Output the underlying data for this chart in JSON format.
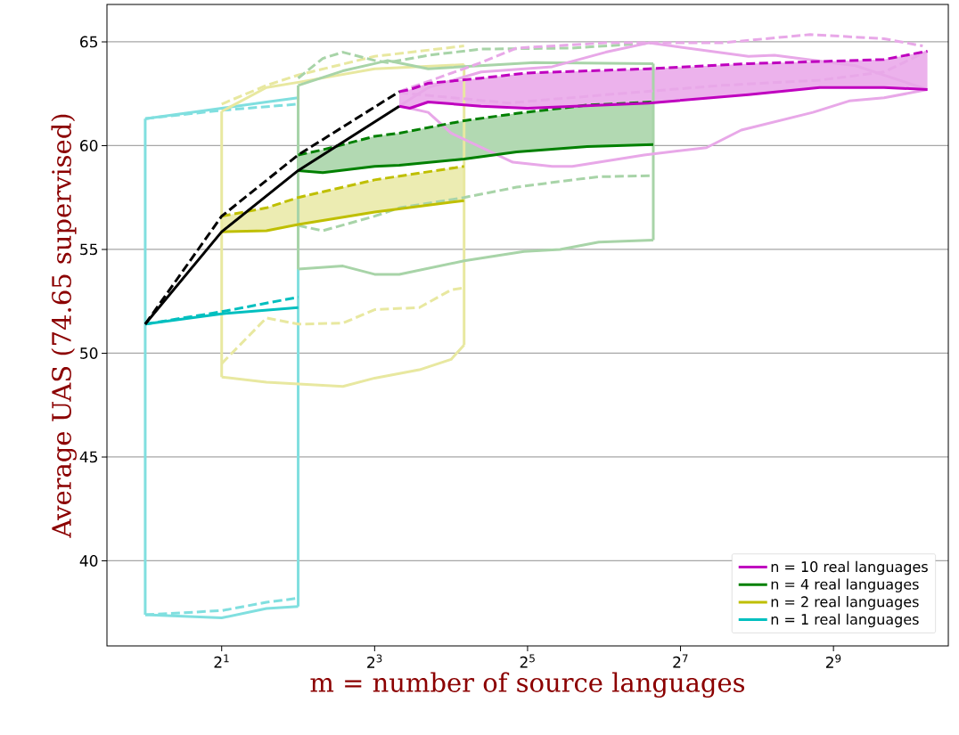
{
  "chart_data": {
    "type": "line",
    "xlabel": "m = number of source languages",
    "ylabel": "Average UAS (74.65 supervised)",
    "log": "x",
    "xlim": [
      0.707,
      1450
    ],
    "ylim": [
      35.9,
      66.8
    ],
    "xticks": [
      {
        "value": 2,
        "label": "2$^{1}$"
      },
      {
        "value": 8,
        "label": "2$^{3}$"
      },
      {
        "value": 32,
        "label": "2$^{5}$"
      },
      {
        "value": 128,
        "label": "2$^{7}$"
      },
      {
        "value": 512,
        "label": "2$^{9}$"
      }
    ],
    "yticks": [
      40,
      45,
      50,
      55,
      60,
      65
    ],
    "grid": "y",
    "legend": "bottom right",
    "series": [
      {
        "color": "#80dfdf",
        "line_style": "solid",
        "x": [
          1,
          2,
          3,
          4
        ],
        "values": [
          61.3,
          61.8,
          62.1,
          62.3
        ]
      },
      {
        "color": "#80dfdf",
        "line_style": "solid",
        "x": [
          1,
          2,
          3,
          4
        ],
        "values": [
          37.4,
          37.25,
          37.7,
          37.8
        ]
      },
      {
        "color": "#80dfdf",
        "line_style": "solid",
        "x": [
          1,
          1
        ],
        "values": [
          37.4,
          61.3
        ]
      },
      {
        "color": "#80dfdf",
        "line_style": "solid",
        "x": [
          4,
          4
        ],
        "values": [
          37.8,
          62.3
        ]
      },
      {
        "color": "#80dfdf",
        "line_style": "dashed",
        "x": [
          1,
          2,
          4
        ],
        "values": [
          61.3,
          61.7,
          62.0
        ]
      },
      {
        "color": "#80dfdf",
        "line_style": "dashed",
        "x": [
          1,
          2,
          3,
          4
        ],
        "values": [
          37.4,
          37.6,
          38.0,
          38.2
        ]
      },
      {
        "color": "#e8e8a0",
        "line_style": "solid",
        "x": [
          2,
          3,
          4,
          8,
          18
        ],
        "values": [
          61.65,
          62.8,
          63.05,
          63.7,
          63.9
        ]
      },
      {
        "color": "#e8e8a0",
        "line_style": "solid",
        "x": [
          2,
          3,
          6,
          8,
          12,
          16,
          18
        ],
        "values": [
          48.85,
          48.6,
          48.4,
          48.8,
          49.2,
          49.7,
          50.4
        ]
      },
      {
        "color": "#e8e8a0",
        "line_style": "solid",
        "x": [
          2,
          2
        ],
        "values": [
          48.85,
          61.65
        ]
      },
      {
        "color": "#e8e8a0",
        "line_style": "solid",
        "x": [
          18,
          18
        ],
        "values": [
          50.4,
          63.9
        ]
      },
      {
        "color": "#e8e8a0",
        "line_style": "dashed",
        "x": [
          2,
          3,
          4,
          8,
          18
        ],
        "values": [
          62.0,
          62.9,
          63.4,
          64.3,
          64.8
        ]
      },
      {
        "color": "#e8e8a0",
        "line_style": "dashed",
        "x": [
          2,
          3,
          4,
          6,
          8,
          12,
          16,
          18
        ],
        "values": [
          49.5,
          51.7,
          51.4,
          51.45,
          52.1,
          52.2,
          53.05,
          53.15
        ]
      },
      {
        "color": "#a8d4a8",
        "line_style": "solid",
        "x": [
          4,
          6,
          8,
          9,
          13,
          34,
          100
        ],
        "values": [
          62.9,
          63.6,
          63.95,
          64.1,
          63.7,
          64.0,
          63.95
        ]
      },
      {
        "color": "#a8d4a8",
        "line_style": "solid",
        "x": [
          4,
          6,
          8,
          10,
          18,
          31,
          43,
          61,
          100
        ],
        "values": [
          54.05,
          54.2,
          53.8,
          53.8,
          54.45,
          54.9,
          55.0,
          55.35,
          55.45
        ]
      },
      {
        "color": "#a8d4a8",
        "line_style": "solid",
        "x": [
          4,
          4
        ],
        "values": [
          54.05,
          62.9
        ]
      },
      {
        "color": "#a8d4a8",
        "line_style": "solid",
        "x": [
          100,
          100
        ],
        "values": [
          55.45,
          63.95
        ]
      },
      {
        "color": "#a8d4a8",
        "line_style": "dashed",
        "x": [
          4,
          5,
          6,
          8,
          9,
          13,
          21,
          48,
          100
        ],
        "values": [
          63.25,
          64.2,
          64.5,
          64.1,
          64.0,
          64.35,
          64.65,
          64.7,
          64.95
        ]
      },
      {
        "color": "#a8d4a8",
        "line_style": "dashed",
        "x": [
          4,
          5,
          8,
          10,
          18,
          29,
          48,
          61,
          100
        ],
        "values": [
          56.15,
          55.9,
          56.6,
          57.0,
          57.5,
          58.0,
          58.35,
          58.5,
          58.55
        ]
      },
      {
        "color": "#e8a8e8",
        "line_style": "solid",
        "x": [
          10,
          13,
          21,
          40,
          65,
          96,
          237,
          300,
          625,
          1200
        ],
        "values": [
          61.9,
          62.8,
          63.55,
          63.8,
          64.5,
          64.95,
          64.3,
          64.35,
          63.85,
          62.7
        ]
      },
      {
        "color": "#e8a8e8",
        "line_style": "solid",
        "x": [
          11,
          13,
          16,
          28,
          40,
          48,
          92,
          162,
          222,
          425,
          590,
          810,
          1200
        ],
        "values": [
          61.8,
          61.6,
          60.6,
          59.2,
          59.0,
          59.0,
          59.55,
          59.9,
          60.75,
          61.6,
          62.15,
          62.3,
          62.7
        ]
      },
      {
        "color": "#e8a8e8",
        "line_style": "dashed",
        "x": [
          10,
          21,
          29,
          65,
          186,
          414,
          810,
          1150
        ],
        "values": [
          62.6,
          64.0,
          64.7,
          64.95,
          64.95,
          65.35,
          65.15,
          64.8
        ]
      },
      {
        "color": "#e8a8e8",
        "line_style": "dashed",
        "x": [
          10,
          27,
          65,
          186,
          452,
          810,
          1200
        ],
        "values": [
          62.55,
          62.05,
          62.45,
          62.9,
          63.15,
          63.55,
          64.55
        ]
      },
      {
        "color": "#bf00bf",
        "line_style": "dashed",
        "x": [
          10,
          11,
          13,
          21,
          32,
          96,
          237,
          452,
          810,
          1200
        ],
        "values": [
          62.6,
          62.7,
          63.0,
          63.25,
          63.5,
          63.7,
          63.95,
          64.05,
          64.15,
          64.55
        ],
        "lower": [
          61.9,
          61.8,
          62.1,
          61.9,
          61.8,
          62.05,
          62.45,
          62.8,
          62.8,
          62.7
        ],
        "upper": [
          62.6,
          62.7,
          63.0,
          63.25,
          63.5,
          63.7,
          63.95,
          64.05,
          64.15,
          64.55
        ]
      },
      {
        "color": "#008000",
        "line_style": "dashed",
        "x": [
          4,
          5,
          8,
          10,
          18,
          29,
          55,
          100
        ],
        "values": [
          59.55,
          59.8,
          60.45,
          60.6,
          61.2,
          61.55,
          61.95,
          62.1
        ],
        "lower": [
          58.8,
          58.7,
          59.0,
          59.05,
          59.35,
          59.7,
          59.95,
          60.05
        ],
        "upper": [
          59.55,
          59.8,
          60.45,
          60.6,
          61.2,
          61.55,
          61.95,
          62.1
        ]
      },
      {
        "color": "#bfbf00",
        "line_style": "dashed",
        "x": [
          2,
          3,
          4,
          8,
          18
        ],
        "values": [
          56.6,
          57.0,
          57.5,
          58.35,
          59.0
        ],
        "lower": [
          55.85,
          55.9,
          56.2,
          56.8,
          57.35
        ],
        "upper": [
          56.6,
          57.0,
          57.5,
          58.35,
          59.0
        ]
      },
      {
        "color": "#00bfbf",
        "line_style": "dashed",
        "x": [
          1,
          2,
          4
        ],
        "values": [
          51.4,
          52.0,
          52.7
        ]
      },
      {
        "name": "n = 10 real languages",
        "color": "#bf00bf",
        "line_style": "solid",
        "x": [
          10,
          11,
          13,
          21,
          32,
          96,
          237,
          452,
          810,
          1200
        ],
        "values": [
          61.9,
          61.8,
          62.1,
          61.9,
          61.8,
          62.05,
          62.45,
          62.8,
          62.8,
          62.7
        ]
      },
      {
        "name": "n = 4 real languages",
        "color": "#008000",
        "line_style": "solid",
        "x": [
          4,
          5,
          8,
          10,
          18,
          29,
          55,
          100
        ],
        "values": [
          58.8,
          58.7,
          59.0,
          59.05,
          59.35,
          59.7,
          59.95,
          60.05
        ]
      },
      {
        "name": "n = 2 real languages",
        "color": "#bfbf00",
        "line_style": "solid",
        "x": [
          2,
          3,
          4,
          8,
          18
        ],
        "values": [
          55.85,
          55.9,
          56.2,
          56.8,
          57.35
        ]
      },
      {
        "name": "n = 1 real languages",
        "color": "#00bfbf",
        "line_style": "solid",
        "x": [
          1,
          2,
          4
        ],
        "values": [
          51.4,
          51.9,
          52.2
        ]
      },
      {
        "color": "#000000",
        "line_style": "dashed",
        "x": [
          1,
          2,
          4,
          10
        ],
        "values": [
          51.4,
          56.6,
          59.55,
          62.6
        ]
      },
      {
        "color": "#000000",
        "line_style": "solid",
        "x": [
          1,
          2,
          4,
          10
        ],
        "values": [
          51.4,
          55.85,
          58.8,
          61.9
        ]
      }
    ]
  }
}
